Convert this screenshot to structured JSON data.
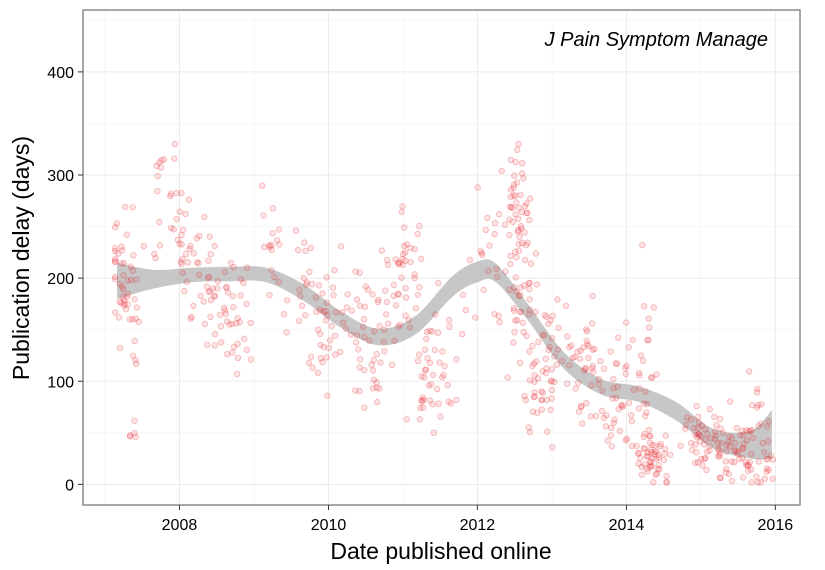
{
  "chart_data": {
    "type": "scatter",
    "title": "",
    "annotation": "J Pain Symptom Manage",
    "xlabel": "Date published online",
    "ylabel": "Publication delay (days)",
    "xlim": [
      "2006-09-15",
      "2016-05-01"
    ],
    "ylim": [
      -20,
      460
    ],
    "x_ticks": [
      "2008",
      "2010",
      "2012",
      "2014",
      "2016"
    ],
    "y_ticks": [
      "0",
      "100",
      "200",
      "300",
      "400"
    ],
    "grid": true,
    "point_color": "#e8262b",
    "band_color": "#bdbdbd",
    "clusters": [
      {
        "date": "2007-04-10",
        "delay": 200,
        "spread_days": 40,
        "spread_delay": 30,
        "n": 45
      },
      {
        "date": "2007-05-20",
        "delay": 48,
        "spread_days": 10,
        "spread_delay": 6,
        "n": 5
      },
      {
        "date": "2007-05-15",
        "delay": 140,
        "spread_days": 15,
        "spread_delay": 20,
        "n": 6
      },
      {
        "date": "2007-11-01",
        "delay": 265,
        "spread_days": 60,
        "spread_delay": 30,
        "n": 25
      },
      {
        "date": "2008-04-01",
        "delay": 200,
        "spread_days": 60,
        "spread_delay": 30,
        "n": 40
      },
      {
        "date": "2008-08-15",
        "delay": 165,
        "spread_days": 60,
        "spread_delay": 25,
        "n": 40
      },
      {
        "date": "2009-04-01",
        "delay": 235,
        "spread_days": 30,
        "spread_delay": 35,
        "n": 15
      },
      {
        "date": "2009-08-01",
        "delay": 190,
        "spread_days": 50,
        "spread_delay": 30,
        "n": 20
      },
      {
        "date": "2009-12-15",
        "delay": 150,
        "spread_days": 45,
        "spread_delay": 30,
        "n": 30
      },
      {
        "date": "2010-06-15",
        "delay": 160,
        "spread_days": 80,
        "spread_delay": 30,
        "n": 50
      },
      {
        "date": "2010-08-15",
        "delay": 100,
        "spread_days": 30,
        "spread_delay": 15,
        "n": 10
      },
      {
        "date": "2011-01-15",
        "delay": 200,
        "spread_days": 40,
        "spread_delay": 30,
        "n": 35
      },
      {
        "date": "2011-05-01",
        "delay": 110,
        "spread_days": 40,
        "spread_delay": 30,
        "n": 35
      },
      {
        "date": "2011-08-15",
        "delay": 140,
        "spread_days": 50,
        "spread_delay": 35,
        "n": 15
      },
      {
        "date": "2012-02-15",
        "delay": 215,
        "spread_days": 50,
        "spread_delay": 40,
        "n": 20
      },
      {
        "date": "2012-07-10",
        "delay": 280,
        "spread_days": 35,
        "spread_delay": 30,
        "n": 40
      },
      {
        "date": "2012-08-15",
        "delay": 180,
        "spread_days": 40,
        "spread_delay": 40,
        "n": 45
      },
      {
        "date": "2012-11-15",
        "delay": 105,
        "spread_days": 40,
        "spread_delay": 35,
        "n": 40
      },
      {
        "date": "2013-06-15",
        "delay": 110,
        "spread_days": 100,
        "spread_delay": 30,
        "n": 60
      },
      {
        "date": "2013-12-15",
        "delay": 85,
        "spread_days": 60,
        "spread_delay": 30,
        "n": 40
      },
      {
        "date": "2014-05-15",
        "delay": 25,
        "spread_days": 40,
        "spread_delay": 12,
        "n": 50
      },
      {
        "date": "2014-04-15",
        "delay": 140,
        "spread_days": 30,
        "spread_delay": 40,
        "n": 15
      },
      {
        "date": "2015-01-15",
        "delay": 45,
        "spread_days": 60,
        "spread_delay": 15,
        "n": 40
      },
      {
        "date": "2015-07-01",
        "delay": 25,
        "spread_days": 90,
        "spread_delay": 15,
        "n": 70
      },
      {
        "date": "2015-09-01",
        "delay": 65,
        "spread_days": 60,
        "spread_delay": 25,
        "n": 15
      }
    ],
    "smooth": [
      {
        "date": "2007-03-01",
        "lower": 180,
        "upper": 215
      },
      {
        "date": "2007-09-01",
        "lower": 190,
        "upper": 208
      },
      {
        "date": "2008-03-01",
        "lower": 196,
        "upper": 210
      },
      {
        "date": "2008-09-01",
        "lower": 197,
        "upper": 211
      },
      {
        "date": "2009-03-01",
        "lower": 196,
        "upper": 210
      },
      {
        "date": "2009-09-01",
        "lower": 178,
        "upper": 194
      },
      {
        "date": "2010-03-01",
        "lower": 152,
        "upper": 168
      },
      {
        "date": "2010-09-01",
        "lower": 135,
        "upper": 151
      },
      {
        "date": "2011-03-01",
        "lower": 145,
        "upper": 163
      },
      {
        "date": "2011-09-01",
        "lower": 182,
        "upper": 202
      },
      {
        "date": "2012-01-01",
        "lower": 196,
        "upper": 216
      },
      {
        "date": "2012-04-01",
        "lower": 196,
        "upper": 214
      },
      {
        "date": "2012-09-01",
        "lower": 160,
        "upper": 176
      },
      {
        "date": "2013-03-01",
        "lower": 112,
        "upper": 128
      },
      {
        "date": "2013-09-01",
        "lower": 87,
        "upper": 102
      },
      {
        "date": "2014-03-01",
        "lower": 80,
        "upper": 95
      },
      {
        "date": "2014-09-01",
        "lower": 62,
        "upper": 80
      },
      {
        "date": "2015-03-01",
        "lower": 35,
        "upper": 54
      },
      {
        "date": "2015-09-01",
        "lower": 25,
        "upper": 52
      },
      {
        "date": "2015-12-15",
        "lower": 25,
        "upper": 72
      }
    ]
  }
}
